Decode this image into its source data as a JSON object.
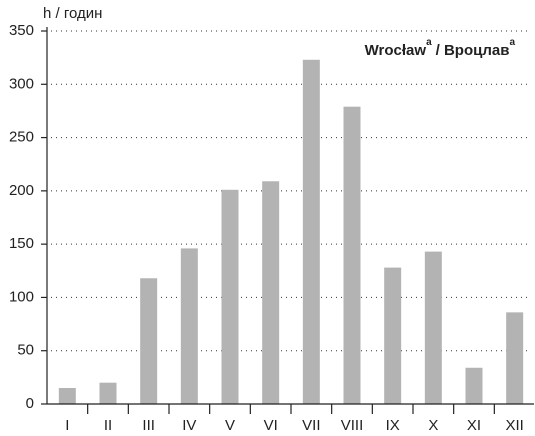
{
  "chart_data": {
    "type": "bar",
    "y_label": "h / годин",
    "title": "Wrocław",
    "title_sup": "a",
    "title2": "/ Вроцлав",
    "title2_sup": "a",
    "categories": [
      "I",
      "II",
      "III",
      "IV",
      "V",
      "VI",
      "VII",
      "VIII",
      "IX",
      "X",
      "XI",
      "XII"
    ],
    "values": [
      15,
      20,
      118,
      146,
      201,
      209,
      323,
      279,
      128,
      143,
      34,
      86
    ],
    "color": "#b3b3b3",
    "ylim": [
      0,
      350
    ],
    "yticks": [
      0,
      50,
      100,
      150,
      200,
      250,
      300,
      350
    ],
    "grid": true
  }
}
